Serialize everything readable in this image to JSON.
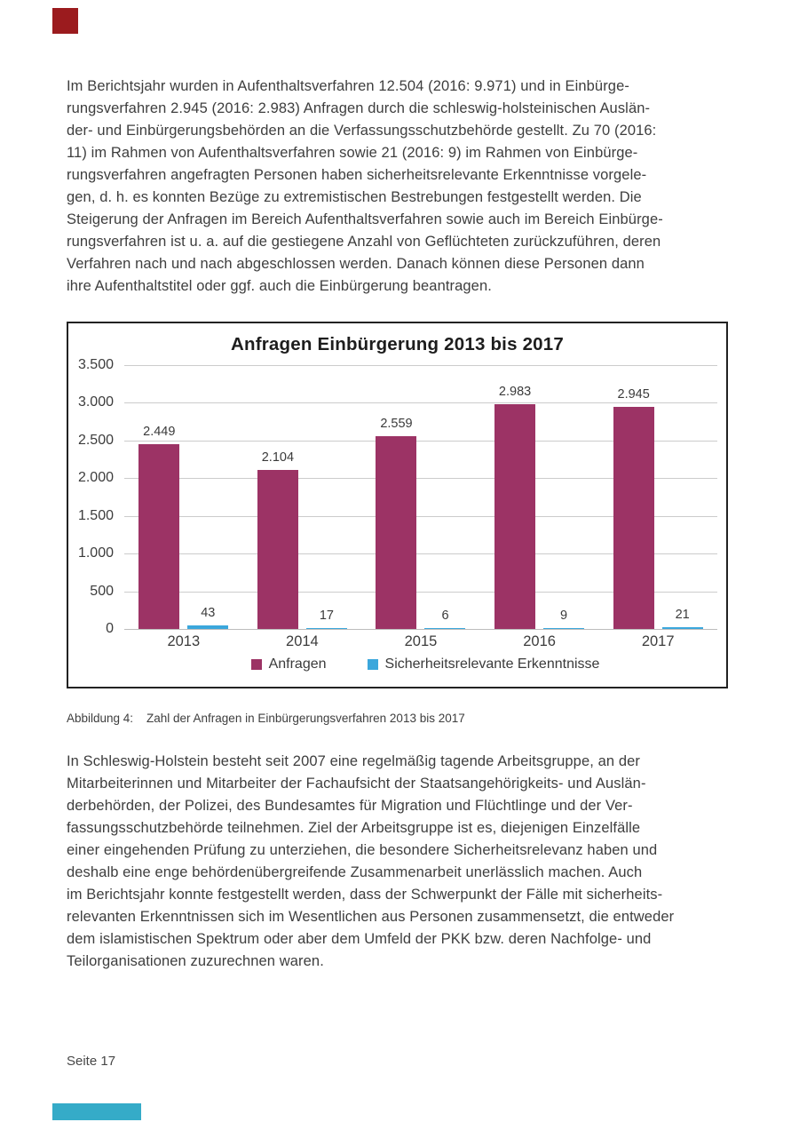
{
  "page": {
    "footer_text": "Seite 17",
    "corner_mark_color": "#9b1b1e",
    "bottom_mark_color": "#35abc8",
    "text_color": "#3e3e3e"
  },
  "paragraph1": {
    "lines": [
      "Im Berichtsjahr wurden in Aufenthaltsverfahren 12.504 (2016: 9.971) und in Einbürge-",
      "rungsverfahren 2.945 (2016: 2.983) Anfragen durch die schleswig-holsteinischen Auslän-",
      "der- und Einbürgerungsbehörden an die Verfassungsschutzbehörde gestellt. Zu 70 (2016:",
      "11) im Rahmen von Aufenthaltsverfahren sowie 21 (2016: 9) im Rahmen von Einbürge-",
      "rungsverfahren angefragten Personen haben sicherheitsrelevante Erkenntnisse vorgele-",
      "gen, d. h. es konnten Bezüge zu extremistischen Bestrebungen festgestellt werden. Die",
      "Steigerung der Anfragen im Bereich Aufenthaltsverfahren sowie auch im Bereich Einbürge-",
      "rungsverfahren ist u. a. auf die gestiegene Anzahl von Geflüchteten zurückzuführen, deren",
      "Verfahren nach und nach abgeschlossen werden. Danach können diese Personen dann",
      "ihre Aufenthaltstitel oder ggf. auch die Einbürgerung beantragen."
    ]
  },
  "chart_data": {
    "type": "bar",
    "title": "Anfragen Einbürgerung 2013 bis 2017",
    "categories": [
      "2013",
      "2014",
      "2015",
      "2016",
      "2017"
    ],
    "series": [
      {
        "name": "Anfragen",
        "color": "#9c3365",
        "values": [
          2449,
          2104,
          2559,
          2983,
          2945
        ],
        "labels": [
          "2.449",
          "2.104",
          "2.559",
          "2.983",
          "2.945"
        ]
      },
      {
        "name": "Sicherheitsrelevante Erkenntnisse",
        "color": "#3ba7dc",
        "values": [
          43,
          17,
          6,
          9,
          21
        ],
        "labels": [
          "43",
          "17",
          "6",
          "9",
          "21"
        ]
      }
    ],
    "y_ticks": [
      "3.500",
      "3.000",
      "2.500",
      "2.000",
      "1.500",
      "1.000",
      "500",
      "0"
    ],
    "ylim": [
      0,
      3500
    ],
    "grid": true,
    "legend_position": "bottom",
    "xlabel": "",
    "ylabel": ""
  },
  "caption": {
    "label": "Abbildung 4:",
    "text": "Zahl der Anfragen in Einbürgerungsverfahren 2013 bis 2017"
  },
  "paragraph2": {
    "lines": [
      "In Schleswig-Holstein besteht seit 2007 eine regelmäßig tagende Arbeitsgruppe, an der",
      "Mitarbeiterinnen und Mitarbeiter der Fachaufsicht der Staatsangehörigkeits- und Auslän-",
      "derbehörden, der Polizei, des Bundesamtes für Migration und Flüchtlinge und der Ver-",
      "fassungsschutzbehörde teilnehmen. Ziel der Arbeitsgruppe ist es, diejenigen Einzelfälle",
      "einer eingehenden Prüfung zu unterziehen, die besondere Sicherheitsrelevanz haben und",
      "deshalb eine enge behördenübergreifende Zusammenarbeit unerlässlich machen. Auch",
      "im Berichtsjahr konnte festgestellt werden, dass der Schwerpunkt der Fälle mit sicherheits-",
      "relevanten Erkenntnissen sich im Wesentlichen aus Personen zusammensetzt, die entweder",
      "dem islamistischen Spektrum oder aber dem Umfeld der PKK bzw. deren Nachfolge- und",
      "Teilorganisationen zuzurechnen waren."
    ]
  }
}
